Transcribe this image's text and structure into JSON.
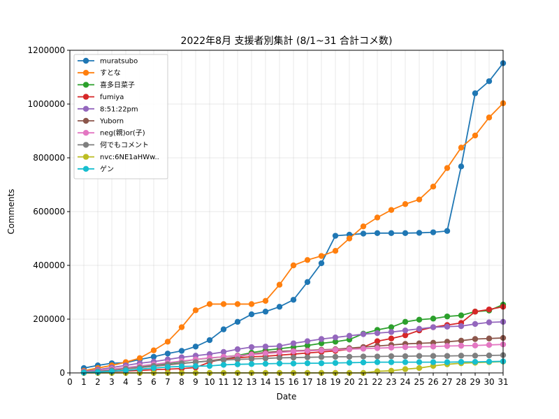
{
  "chart_data": {
    "type": "line",
    "title": "2022年8月 支援者別集計 (8/1~31 合計コメ数)",
    "xlabel": "Date",
    "ylabel": "Comments",
    "xlim": [
      0,
      31
    ],
    "ylim": [
      0,
      1200000
    ],
    "x_ticks": [
      0,
      1,
      2,
      3,
      4,
      5,
      6,
      7,
      8,
      9,
      10,
      11,
      12,
      13,
      14,
      15,
      16,
      17,
      18,
      19,
      20,
      21,
      22,
      23,
      24,
      25,
      26,
      27,
      28,
      29,
      30,
      31
    ],
    "y_ticks": [
      0,
      200000,
      400000,
      600000,
      800000,
      1000000,
      1200000
    ],
    "grid": true,
    "legend_position": "top-left",
    "x": [
      1,
      2,
      3,
      4,
      5,
      6,
      7,
      8,
      9,
      10,
      11,
      12,
      13,
      14,
      15,
      16,
      17,
      18,
      19,
      20,
      21,
      22,
      23,
      24,
      25,
      26,
      27,
      28,
      29,
      30,
      31
    ],
    "series": [
      {
        "name": "muratsubo",
        "color": "#1f77b4",
        "values": [
          18000,
          28000,
          36000,
          38000,
          50000,
          60000,
          72000,
          82000,
          98000,
          122000,
          162000,
          190000,
          218000,
          228000,
          246000,
          272000,
          338000,
          408000,
          510000,
          514000,
          518000,
          520000,
          520000,
          520000,
          521000,
          523000,
          528000,
          768000,
          1040000,
          1085000,
          1152000
        ]
      },
      {
        "name": "すとな",
        "color": "#ff7f0e",
        "values": [
          8000,
          18000,
          28000,
          40000,
          55000,
          84000,
          116000,
          170000,
          233000,
          256000,
          256000,
          256000,
          256000,
          268000,
          328000,
          400000,
          420000,
          435000,
          454000,
          500000,
          545000,
          578000,
          606000,
          628000,
          645000,
          693000,
          762000,
          838000,
          883000,
          950000,
          1003000
        ]
      },
      {
        "name": "喜多日菜子",
        "color": "#2ca02c",
        "values": [
          2000,
          6000,
          12000,
          18000,
          24000,
          30000,
          36000,
          42000,
          50000,
          55000,
          60000,
          65000,
          75000,
          84000,
          90000,
          96000,
          102000,
          110000,
          116000,
          124000,
          146000,
          160000,
          170000,
          190000,
          198000,
          202000,
          210000,
          214000,
          228000,
          232000,
          254000
        ]
      },
      {
        "name": "fumiya",
        "color": "#d62728",
        "values": [
          1000,
          3000,
          5000,
          7000,
          9000,
          12000,
          14000,
          16000,
          20000,
          40000,
          52000,
          56000,
          60000,
          62000,
          66000,
          70000,
          74000,
          78000,
          82000,
          88000,
          96000,
          118000,
          128000,
          140000,
          158000,
          170000,
          178000,
          186000,
          228000,
          236000,
          246000
        ]
      },
      {
        "name": "8:51:22pm",
        "color": "#9467bd",
        "values": [
          5000,
          12000,
          20000,
          28000,
          36000,
          42000,
          50000,
          58000,
          64000,
          70000,
          78000,
          88000,
          96000,
          98000,
          100000,
          110000,
          118000,
          126000,
          132000,
          138000,
          144000,
          148000,
          152000,
          158000,
          164000,
          170000,
          172000,
          174000,
          182000,
          188000,
          190000
        ]
      },
      {
        "name": "Yuborn",
        "color": "#8c564b",
        "values": [
          2000,
          5000,
          10000,
          15000,
          20000,
          25000,
          30000,
          35000,
          40000,
          45000,
          52000,
          60000,
          70000,
          76000,
          80000,
          82000,
          84000,
          86000,
          88000,
          92000,
          96000,
          100000,
          104000,
          108000,
          110000,
          112000,
          116000,
          120000,
          126000,
          128000,
          130000
        ]
      },
      {
        "name": "neg(親)or(子)",
        "color": "#e377c2",
        "values": [
          3000,
          8000,
          14000,
          20000,
          26000,
          32000,
          38000,
          44000,
          50000,
          56000,
          60000,
          64000,
          68000,
          72000,
          76000,
          80000,
          82000,
          84000,
          86000,
          88000,
          90000,
          92000,
          94000,
          96000,
          97000,
          98000,
          100000,
          101000,
          102000,
          104000,
          106000
        ]
      },
      {
        "name": "何でもコメント",
        "color": "#7f7f7f",
        "values": [
          2000,
          6000,
          10000,
          16000,
          20000,
          26000,
          32000,
          36000,
          40000,
          44000,
          48000,
          50000,
          52000,
          54000,
          56000,
          57000,
          58000,
          59000,
          60000,
          60000,
          61000,
          61000,
          62000,
          62000,
          63000,
          63000,
          63000,
          64000,
          64000,
          65000,
          66000
        ]
      },
      {
        "name": "nvc:6NE1aHWw..",
        "color": "#bcbd22",
        "values": [
          0,
          0,
          0,
          0,
          0,
          0,
          0,
          0,
          0,
          0,
          0,
          0,
          0,
          0,
          0,
          0,
          0,
          0,
          0,
          0,
          0,
          6000,
          8000,
          14000,
          18000,
          26000,
          32000,
          36000,
          38000,
          40000,
          42000
        ]
      },
      {
        "name": "ゲン",
        "color": "#17becf",
        "values": [
          1000,
          3000,
          6000,
          9000,
          14000,
          18000,
          22000,
          24000,
          25000,
          26000,
          30000,
          32000,
          33000,
          34000,
          35000,
          35000,
          36000,
          36000,
          37000,
          38000,
          39000,
          40000,
          40000,
          40000,
          40000,
          40000,
          40000,
          41000,
          41000,
          42000,
          43000
        ]
      }
    ]
  }
}
